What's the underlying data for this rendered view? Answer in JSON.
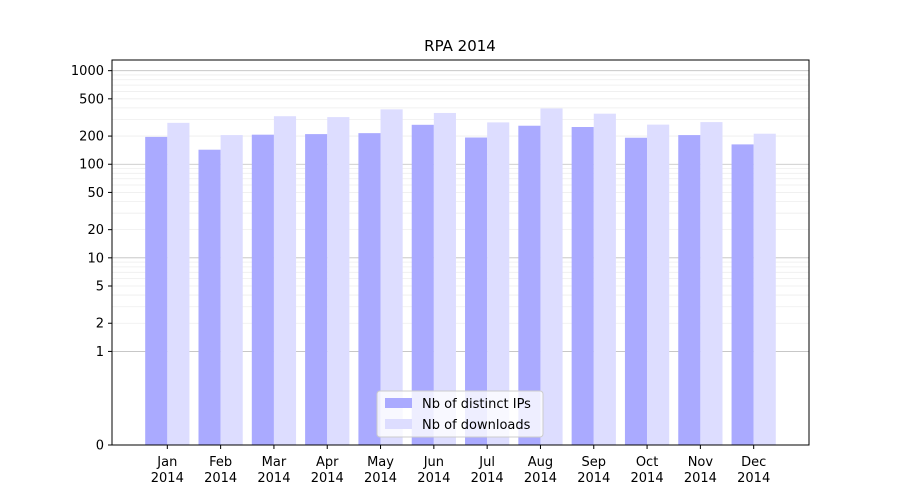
{
  "chart_data": {
    "type": "bar",
    "title": "RPA 2014",
    "xlabel": "",
    "ylabel": "",
    "yscale": "symlog",
    "ylim": [
      0,
      1300
    ],
    "yticks": [
      0,
      1,
      2,
      5,
      10,
      20,
      50,
      100,
      200,
      500,
      1000
    ],
    "grid": true,
    "legend_position": "bottom-center",
    "categories": [
      "Jan 2014",
      "Feb 2014",
      "Mar 2014",
      "Apr 2014",
      "May 2014",
      "Jun 2014",
      "Jul 2014",
      "Aug 2014",
      "Sep 2014",
      "Oct 2014",
      "Nov 2014",
      "Dec 2014"
    ],
    "series": [
      {
        "name": "Nb of distinct IPs",
        "color": "#aaaaff",
        "values": [
          196,
          143,
          207,
          210,
          215,
          264,
          193,
          258,
          250,
          192,
          205,
          163
        ]
      },
      {
        "name": "Nb of downloads",
        "color": "#ddddff",
        "values": [
          277,
          205,
          326,
          319,
          386,
          353,
          280,
          395,
          347,
          265,
          282,
          212
        ]
      }
    ]
  }
}
